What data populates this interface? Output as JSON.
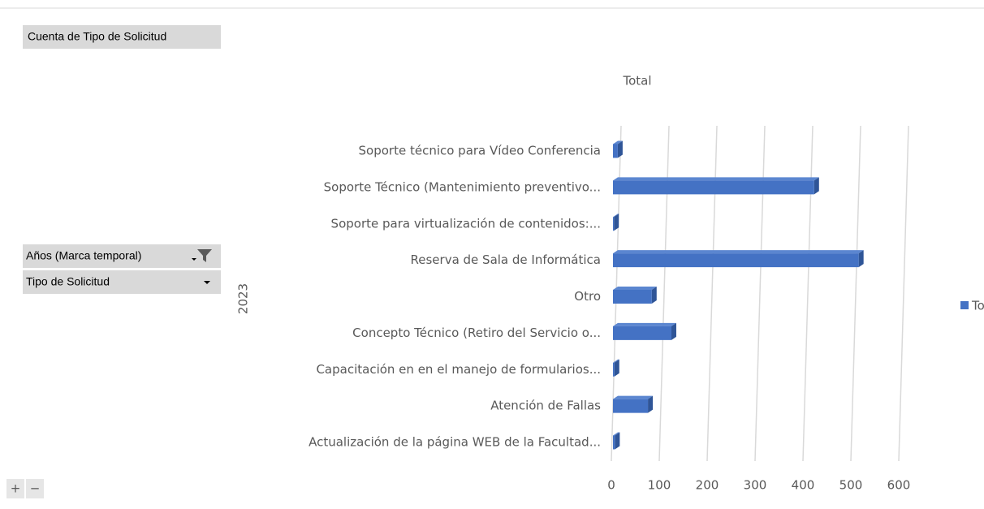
{
  "pivot": {
    "value_field": "Cuenta de Tipo de Solicitud",
    "filter_fields": [
      "Años (Marca temporal)",
      "Tipo de Solicitud"
    ],
    "buttons": [
      "+",
      "−"
    ]
  },
  "chart_data": {
    "type": "bar",
    "orientation": "horizontal",
    "title": "Total",
    "group_label": "2023",
    "categories": [
      "Soporte técnico para Vídeo Conferencia",
      "Soporte Técnico (Mantenimiento preventivo...",
      "Soporte para virtualización de contenidos:...",
      "Reserva de Sala de Informática",
      "Otro",
      "Concepto Técnico (Retiro del Servicio o...",
      "Capacitación en en el manejo de formularios...",
      "Atención de Fallas",
      "Actualización de la página WEB de la Facultad..."
    ],
    "series": [
      {
        "name": "Total",
        "color": "#4472c4",
        "values": [
          10,
          420,
          2,
          513,
          81,
          122,
          3,
          73,
          4
        ]
      }
    ],
    "xlim": [
      0,
      600
    ],
    "xticks": [
      0,
      100,
      200,
      300,
      400,
      500,
      600
    ],
    "grid": true,
    "legend": "right"
  }
}
